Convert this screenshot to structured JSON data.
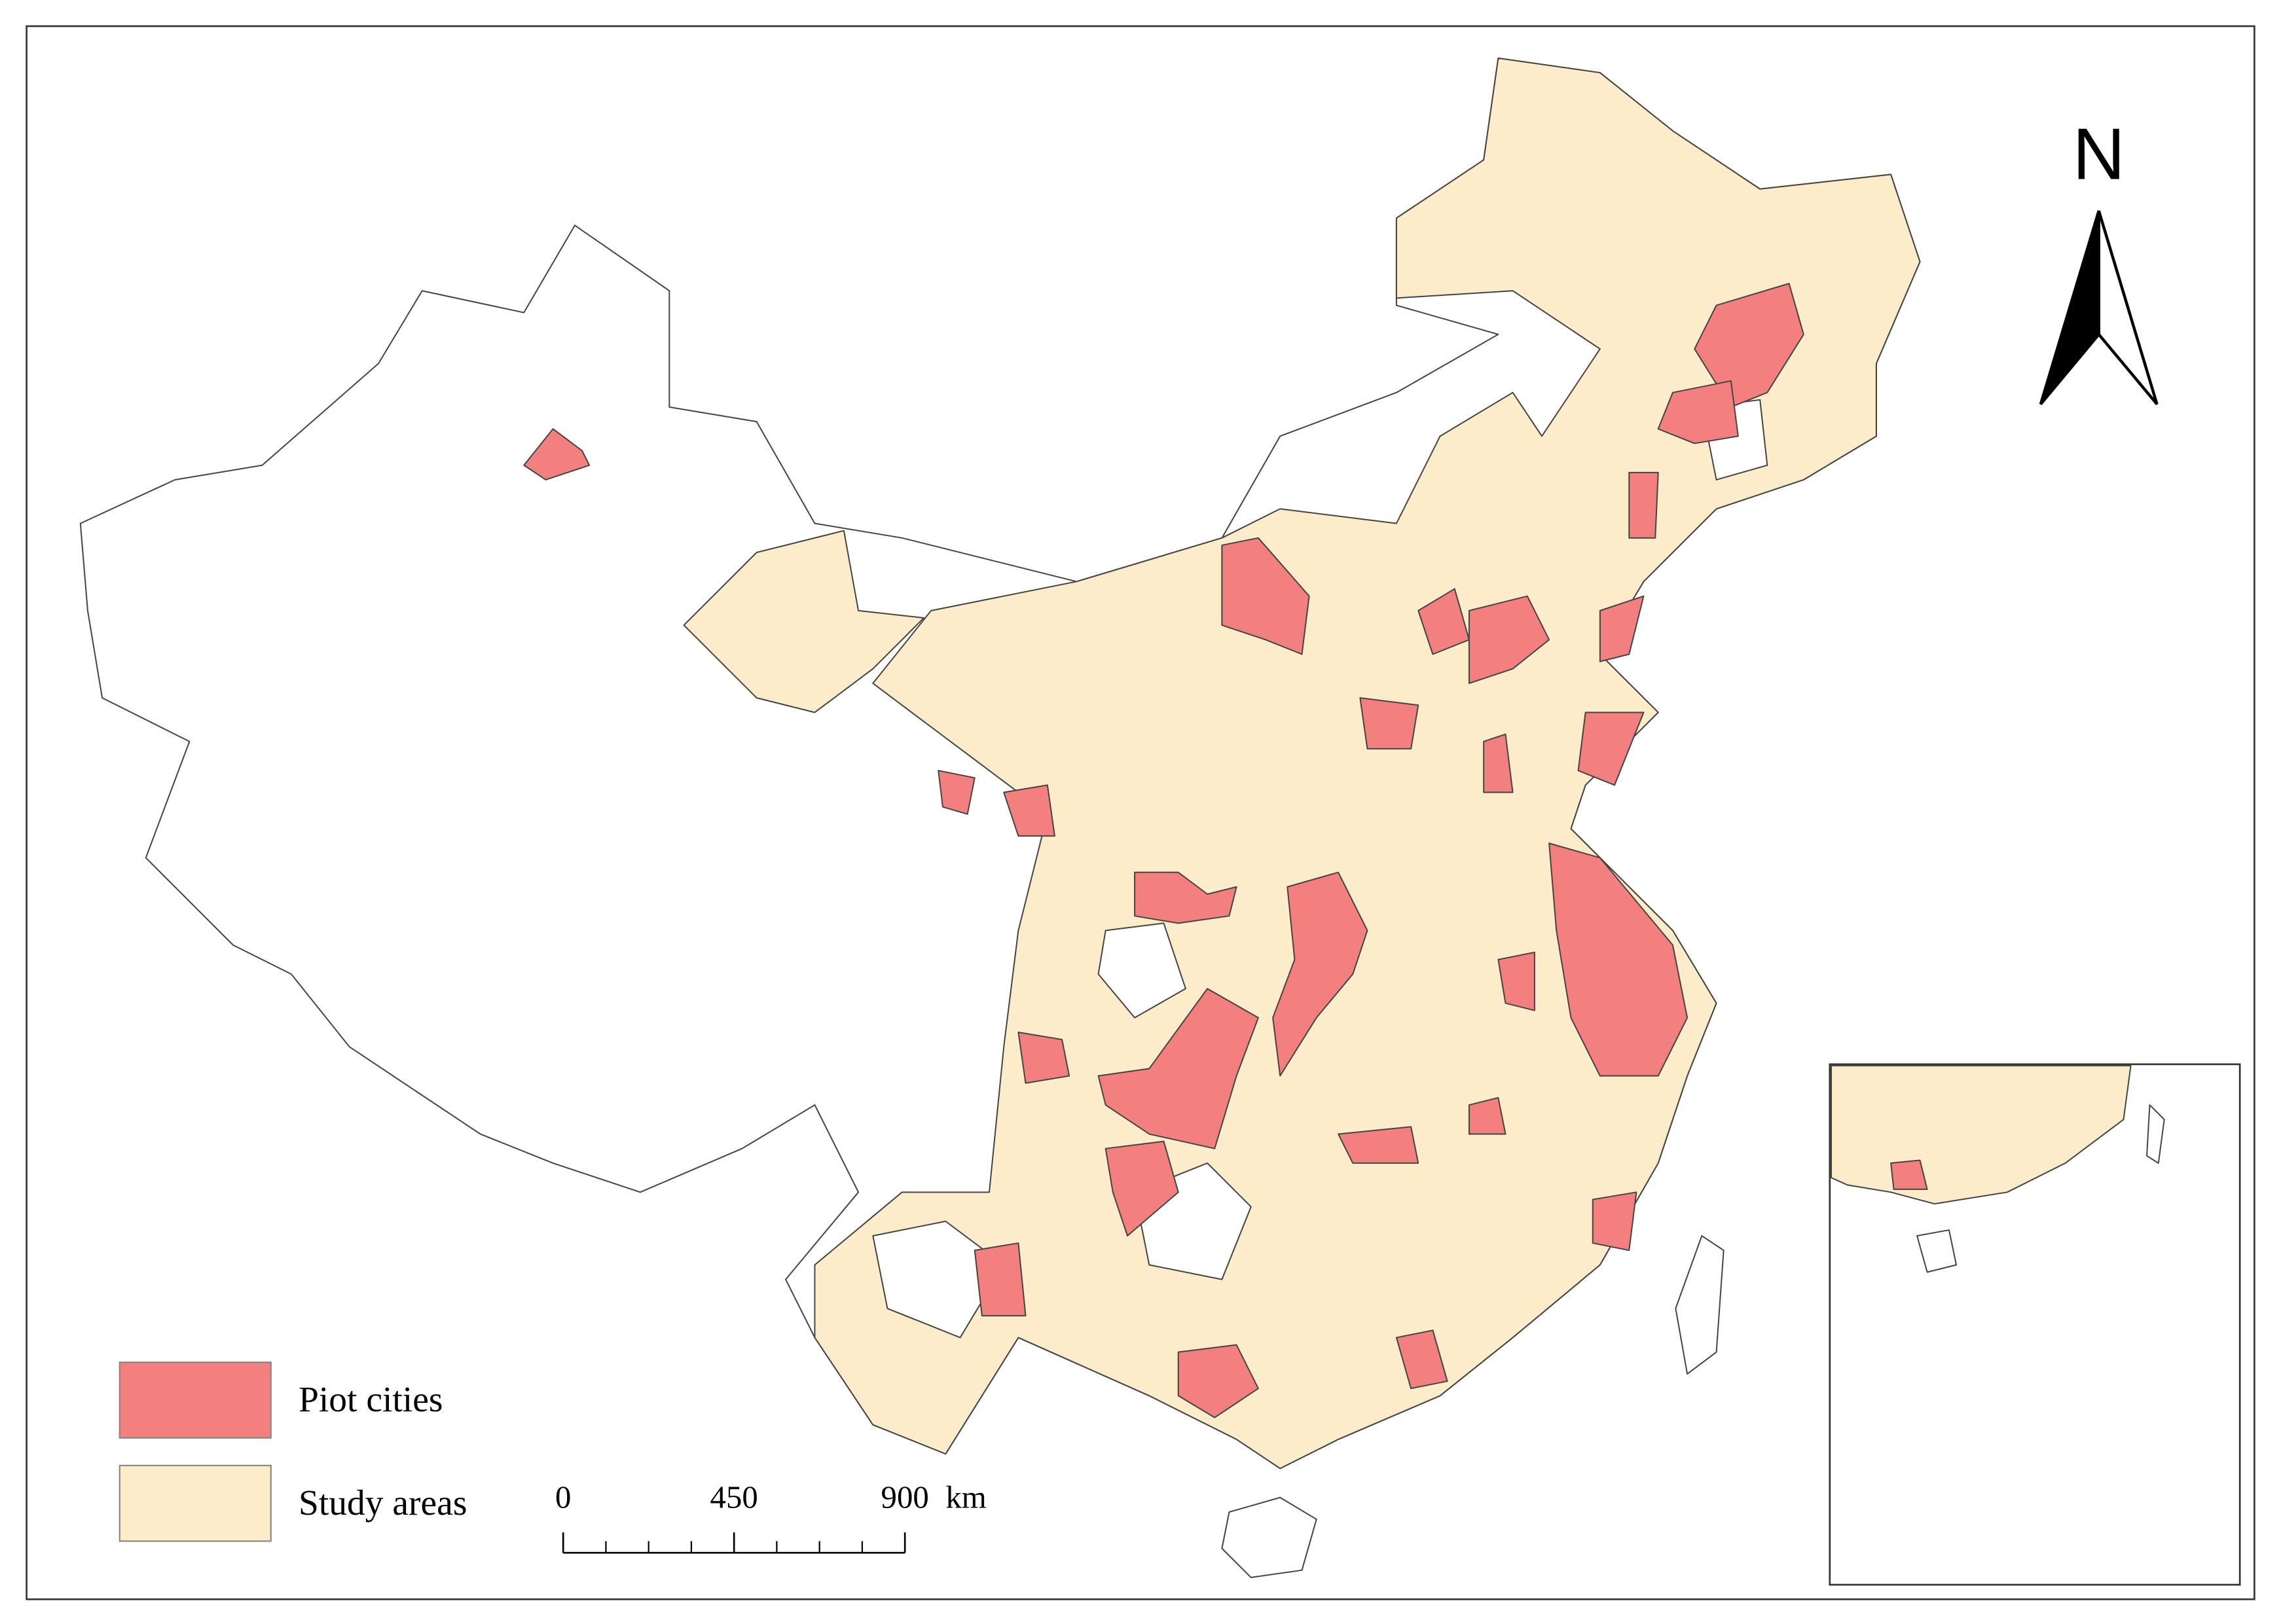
{
  "north_label": "N",
  "legend": {
    "items": [
      {
        "label": "Piot cities",
        "color": "#f47f7f"
      },
      {
        "label": "Study areas",
        "color": "#fdecc9"
      }
    ]
  },
  "scale_bar": {
    "ticks": [
      0,
      450,
      900
    ],
    "unit": "km"
  }
}
